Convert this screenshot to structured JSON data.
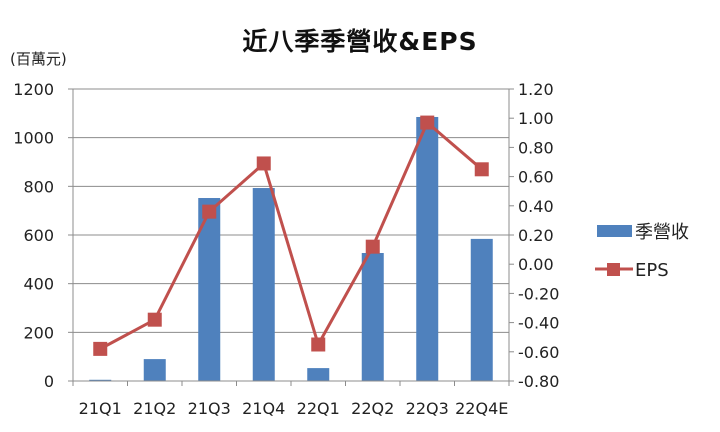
{
  "chart_data": {
    "type": "bar+line",
    "title": "近八季季營收&EPS",
    "unit_label": "(百萬元)",
    "categories": [
      "21Q1",
      "21Q2",
      "21Q3",
      "21Q4",
      "22Q1",
      "22Q2",
      "22Q3",
      "22Q4E"
    ],
    "series": [
      {
        "name": "季營收",
        "type": "bar",
        "axis": "left",
        "color": "#4F81BD",
        "values": [
          5,
          90,
          752,
          793,
          53,
          526,
          1085,
          584
        ]
      },
      {
        "name": "EPS",
        "type": "line",
        "axis": "right",
        "color": "#C0504D",
        "marker": "square",
        "values": [
          -0.58,
          -0.38,
          0.36,
          0.69,
          -0.55,
          0.12,
          0.97,
          0.65
        ]
      }
    ],
    "y_left": {
      "label": "(百萬元)",
      "ylim": [
        0,
        1200
      ],
      "ticks": [
        "0",
        "200",
        "400",
        "600",
        "800",
        "1000",
        "1200"
      ]
    },
    "y_right": {
      "label": "",
      "ylim": [
        -0.8,
        1.2
      ],
      "ticks": [
        "-0.80",
        "-0.60",
        "-0.40",
        "-0.20",
        "0.00",
        "0.20",
        "0.40",
        "0.60",
        "0.80",
        "1.00",
        "1.20"
      ]
    },
    "grid": true,
    "legend_position": "right",
    "legend": [
      {
        "label": "季營收",
        "kind": "bar",
        "color": "#4F81BD"
      },
      {
        "label": "EPS",
        "kind": "line-marker",
        "color": "#C0504D"
      }
    ]
  }
}
